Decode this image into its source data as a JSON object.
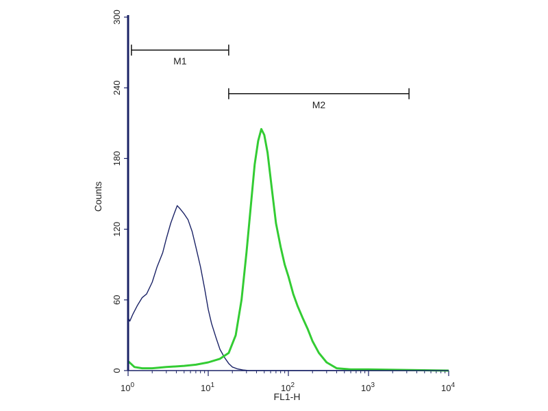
{
  "chart_data": {
    "type": "line",
    "xlabel": "FL1-H",
    "ylabel": "Counts",
    "x_scale": "log",
    "xlim": [
      1,
      10000
    ],
    "ylim": [
      0,
      300
    ],
    "x_ticks": [
      {
        "value": 1,
        "base": "10",
        "exp": "0"
      },
      {
        "value": 10,
        "base": "10",
        "exp": "1"
      },
      {
        "value": 100,
        "base": "10",
        "exp": "2"
      },
      {
        "value": 1000,
        "base": "10",
        "exp": "3"
      },
      {
        "value": 10000,
        "base": "10",
        "exp": "4"
      }
    ],
    "y_ticks": [
      0,
      60,
      120,
      180,
      240,
      300
    ],
    "markers": [
      {
        "label": "M1",
        "start": 1.1,
        "end": 18,
        "y": 272
      },
      {
        "label": "M2",
        "start": 18,
        "end": 3200,
        "y": 235
      }
    ],
    "series": [
      {
        "color": "#1a2266",
        "x": [
          1.0,
          1.05,
          1.15,
          1.3,
          1.5,
          1.7,
          2.0,
          2.3,
          2.7,
          3.0,
          3.4,
          3.8,
          4.1,
          4.5,
          5.0,
          5.6,
          6.3,
          7.0,
          8.0,
          9.0,
          10.0,
          11.0,
          12.5,
          14.0,
          16.0,
          18.0,
          20.0,
          23.0,
          27.0,
          32.0,
          40.0,
          60.0,
          100.0,
          300.0,
          1000.0,
          3000.0,
          10000.0
        ],
        "y": [
          45,
          42,
          48,
          55,
          62,
          65,
          75,
          88,
          100,
          112,
          125,
          134,
          140,
          137,
          133,
          128,
          118,
          105,
          88,
          70,
          52,
          40,
          28,
          18,
          11,
          6,
          3,
          1.5,
          0.5,
          0,
          0,
          0,
          0,
          0,
          0,
          0,
          0
        ]
      },
      {
        "color": "#33cc33",
        "x": [
          1.0,
          1.2,
          1.5,
          2.0,
          3.0,
          5.0,
          7.0,
          10.0,
          14.0,
          18.0,
          22.0,
          26.0,
          30.0,
          34.0,
          38.0,
          42.0,
          46.0,
          50.0,
          55.0,
          62.0,
          70.0,
          80.0,
          90.0,
          100.0,
          115.0,
          130.0,
          150.0,
          175.0,
          200.0,
          240.0,
          300.0,
          400.0,
          600.0,
          1000.0,
          3000.0,
          10000.0
        ],
        "y": [
          8,
          3,
          2,
          2,
          3,
          4,
          5,
          7,
          10,
          15,
          30,
          60,
          100,
          140,
          175,
          195,
          205,
          200,
          185,
          155,
          125,
          105,
          90,
          80,
          65,
          55,
          45,
          35,
          25,
          15,
          7,
          2,
          1,
          1,
          0.5,
          0
        ]
      }
    ]
  }
}
